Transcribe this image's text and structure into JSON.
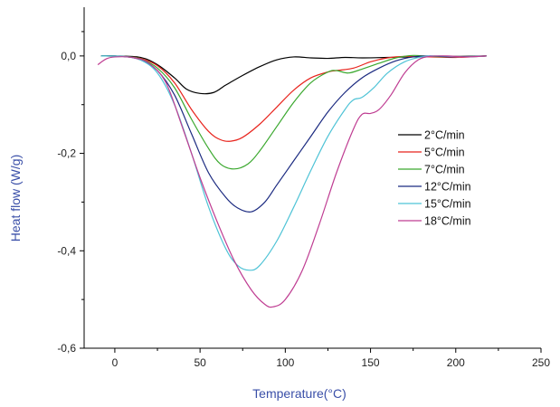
{
  "chart_data": {
    "type": "line",
    "xlabel": "Temperature(°C)",
    "ylabel": "Heat flow (W/g)",
    "xlim": [
      -18,
      250
    ],
    "ylim": [
      -0.6,
      0.1
    ],
    "x_ticks": [
      0,
      50,
      100,
      150,
      200,
      250
    ],
    "x_tick_labels": [
      "0",
      "50",
      "100",
      "150",
      "200",
      "250"
    ],
    "y_ticks": [
      0.0,
      -0.2,
      -0.4,
      -0.6
    ],
    "y_tick_labels": [
      "0,0",
      "-0,2",
      "-0,4",
      "-0,6"
    ],
    "grid": false,
    "legend_position": "right",
    "axis_title_color": "#3a4fa8",
    "series": [
      {
        "name": "2°C/min",
        "color": "#000000",
        "points": [
          [
            -8,
            0
          ],
          [
            0,
            0
          ],
          [
            15,
            -0.003
          ],
          [
            25,
            -0.018
          ],
          [
            35,
            -0.045
          ],
          [
            42,
            -0.068
          ],
          [
            50,
            -0.077
          ],
          [
            58,
            -0.075
          ],
          [
            65,
            -0.06
          ],
          [
            75,
            -0.04
          ],
          [
            85,
            -0.022
          ],
          [
            95,
            -0.008
          ],
          [
            105,
            -0.002
          ],
          [
            115,
            -0.004
          ],
          [
            125,
            -0.005
          ],
          [
            135,
            -0.003
          ],
          [
            145,
            -0.004
          ],
          [
            160,
            -0.003
          ],
          [
            175,
            -0.002
          ],
          [
            200,
            -0.001
          ],
          [
            218,
            0
          ]
        ]
      },
      {
        "name": "5°C/min",
        "color": "#e8231c",
        "points": [
          [
            -8,
            0
          ],
          [
            5,
            -0.001
          ],
          [
            15,
            -0.005
          ],
          [
            25,
            -0.02
          ],
          [
            35,
            -0.055
          ],
          [
            45,
            -0.11
          ],
          [
            55,
            -0.155
          ],
          [
            62,
            -0.172
          ],
          [
            68,
            -0.175
          ],
          [
            75,
            -0.167
          ],
          [
            85,
            -0.14
          ],
          [
            95,
            -0.105
          ],
          [
            105,
            -0.07
          ],
          [
            115,
            -0.045
          ],
          [
            125,
            -0.033
          ],
          [
            130,
            -0.03
          ],
          [
            140,
            -0.025
          ],
          [
            150,
            -0.012
          ],
          [
            160,
            -0.004
          ],
          [
            170,
            -0.001
          ],
          [
            185,
            -0.002
          ],
          [
            200,
            -0.003
          ],
          [
            218,
            0
          ]
        ]
      },
      {
        "name": "7°C/min",
        "color": "#3aa82e",
        "points": [
          [
            -8,
            0
          ],
          [
            5,
            -0.001
          ],
          [
            15,
            -0.006
          ],
          [
            25,
            -0.025
          ],
          [
            35,
            -0.065
          ],
          [
            45,
            -0.13
          ],
          [
            55,
            -0.19
          ],
          [
            62,
            -0.222
          ],
          [
            70,
            -0.232
          ],
          [
            78,
            -0.222
          ],
          [
            85,
            -0.195
          ],
          [
            95,
            -0.145
          ],
          [
            105,
            -0.095
          ],
          [
            115,
            -0.055
          ],
          [
            125,
            -0.033
          ],
          [
            130,
            -0.03
          ],
          [
            137,
            -0.035
          ],
          [
            145,
            -0.027
          ],
          [
            155,
            -0.015
          ],
          [
            165,
            -0.004
          ],
          [
            175,
            0.001
          ],
          [
            185,
            -0.001
          ],
          [
            200,
            -0.002
          ],
          [
            218,
            0
          ]
        ]
      },
      {
        "name": "12°C/min",
        "color": "#1b2a80",
        "points": [
          [
            -8,
            0
          ],
          [
            5,
            -0.001
          ],
          [
            15,
            -0.008
          ],
          [
            25,
            -0.03
          ],
          [
            35,
            -0.08
          ],
          [
            45,
            -0.16
          ],
          [
            55,
            -0.24
          ],
          [
            65,
            -0.29
          ],
          [
            72,
            -0.312
          ],
          [
            80,
            -0.32
          ],
          [
            88,
            -0.3
          ],
          [
            95,
            -0.265
          ],
          [
            105,
            -0.215
          ],
          [
            115,
            -0.165
          ],
          [
            125,
            -0.115
          ],
          [
            135,
            -0.075
          ],
          [
            145,
            -0.045
          ],
          [
            155,
            -0.025
          ],
          [
            165,
            -0.01
          ],
          [
            175,
            -0.002
          ],
          [
            185,
            0
          ],
          [
            200,
            -0.002
          ],
          [
            218,
            0
          ]
        ]
      },
      {
        "name": "15°C/min",
        "color": "#4ec3d6",
        "points": [
          [
            -8,
            0
          ],
          [
            5,
            -0.001
          ],
          [
            15,
            -0.008
          ],
          [
            25,
            -0.035
          ],
          [
            35,
            -0.1
          ],
          [
            45,
            -0.2
          ],
          [
            55,
            -0.31
          ],
          [
            65,
            -0.395
          ],
          [
            72,
            -0.43
          ],
          [
            79,
            -0.44
          ],
          [
            85,
            -0.43
          ],
          [
            95,
            -0.38
          ],
          [
            105,
            -0.31
          ],
          [
            115,
            -0.235
          ],
          [
            125,
            -0.165
          ],
          [
            135,
            -0.11
          ],
          [
            140,
            -0.09
          ],
          [
            145,
            -0.085
          ],
          [
            152,
            -0.065
          ],
          [
            160,
            -0.035
          ],
          [
            170,
            -0.012
          ],
          [
            180,
            -0.002
          ],
          [
            190,
            0
          ],
          [
            205,
            -0.002
          ],
          [
            218,
            0
          ]
        ]
      },
      {
        "name": "18°C/min",
        "color": "#bf3d92",
        "points": [
          [
            -10,
            -0.018
          ],
          [
            -5,
            -0.006
          ],
          [
            0,
            -0.002
          ],
          [
            10,
            -0.003
          ],
          [
            20,
            -0.015
          ],
          [
            30,
            -0.055
          ],
          [
            40,
            -0.15
          ],
          [
            50,
            -0.25
          ],
          [
            60,
            -0.34
          ],
          [
            70,
            -0.42
          ],
          [
            80,
            -0.48
          ],
          [
            88,
            -0.51
          ],
          [
            93,
            -0.515
          ],
          [
            100,
            -0.5
          ],
          [
            110,
            -0.44
          ],
          [
            120,
            -0.345
          ],
          [
            130,
            -0.24
          ],
          [
            140,
            -0.15
          ],
          [
            145,
            -0.12
          ],
          [
            150,
            -0.118
          ],
          [
            155,
            -0.11
          ],
          [
            162,
            -0.08
          ],
          [
            170,
            -0.035
          ],
          [
            178,
            -0.008
          ],
          [
            185,
            -0.001
          ],
          [
            195,
            0
          ],
          [
            205,
            -0.002
          ],
          [
            218,
            0
          ]
        ]
      }
    ]
  }
}
